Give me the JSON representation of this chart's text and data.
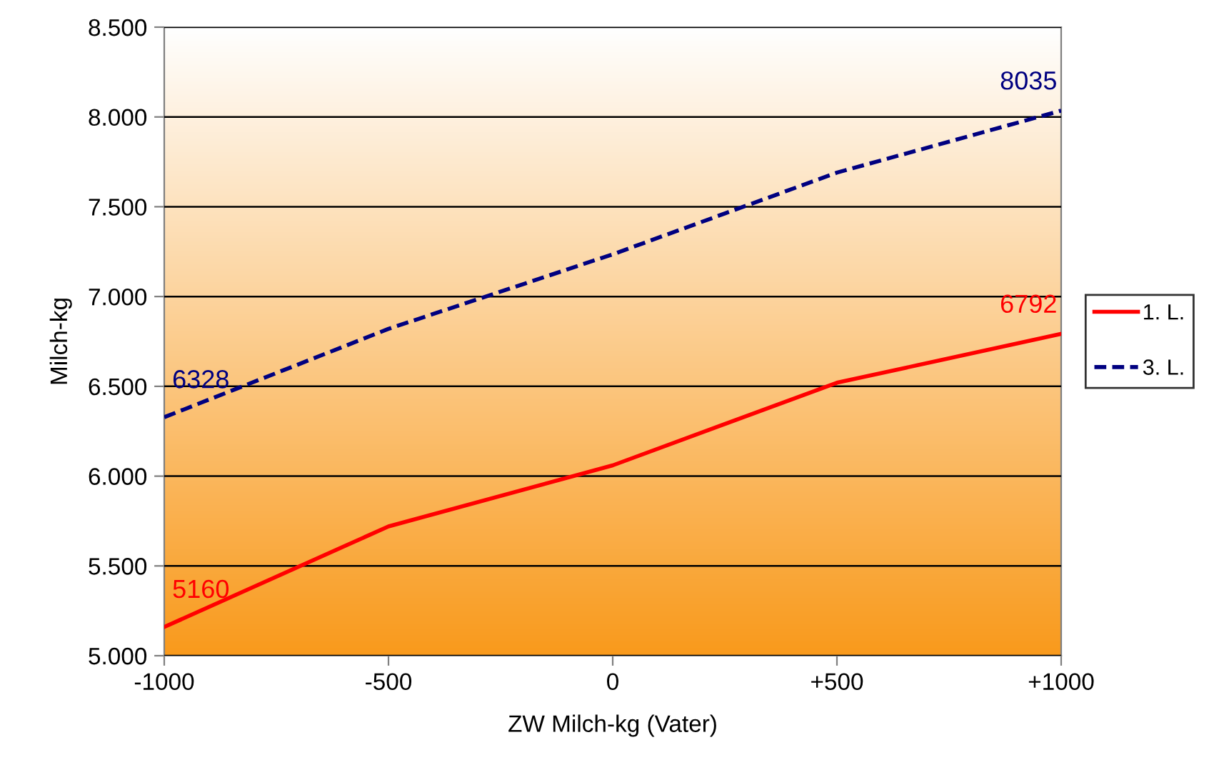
{
  "chart_data": {
    "type": "line",
    "xlabel": "ZW Milch-kg (Vater)",
    "ylabel": "Milch-kg",
    "x": [
      -1000,
      -500,
      0,
      500,
      1000
    ],
    "series": [
      {
        "name": "1. L.",
        "color": "#ff0000",
        "line_style": "solid",
        "values": [
          5160,
          5720,
          6060,
          6520,
          6792
        ],
        "value_labels": [
          "5160",
          null,
          null,
          null,
          "6792"
        ]
      },
      {
        "name": "3. L.",
        "color": "#000080",
        "line_style": "dashed",
        "values": [
          6328,
          6820,
          7235,
          7690,
          8035
        ],
        "value_labels": [
          "6328",
          null,
          null,
          null,
          "8035"
        ]
      }
    ],
    "xlim": [
      -1000,
      1000
    ],
    "xticks": [
      -1000,
      -500,
      0,
      {
        "value": 500,
        "label": "+500"
      },
      {
        "value": 1000,
        "label": "+1000"
      }
    ],
    "ylim": [
      5000,
      8500
    ],
    "yticks": [
      {
        "value": 5000,
        "label": "5.000"
      },
      {
        "value": 5500,
        "label": "5.500"
      },
      {
        "value": 6000,
        "label": "6.000"
      },
      {
        "value": 6500,
        "label": "6.500"
      },
      {
        "value": 7000,
        "label": "7.000"
      },
      {
        "value": 7500,
        "label": "7.500"
      },
      {
        "value": 8000,
        "label": "8.000"
      },
      {
        "value": 8500,
        "label": "8.500"
      }
    ],
    "grid": "y",
    "legend": "right",
    "marker": "none"
  }
}
